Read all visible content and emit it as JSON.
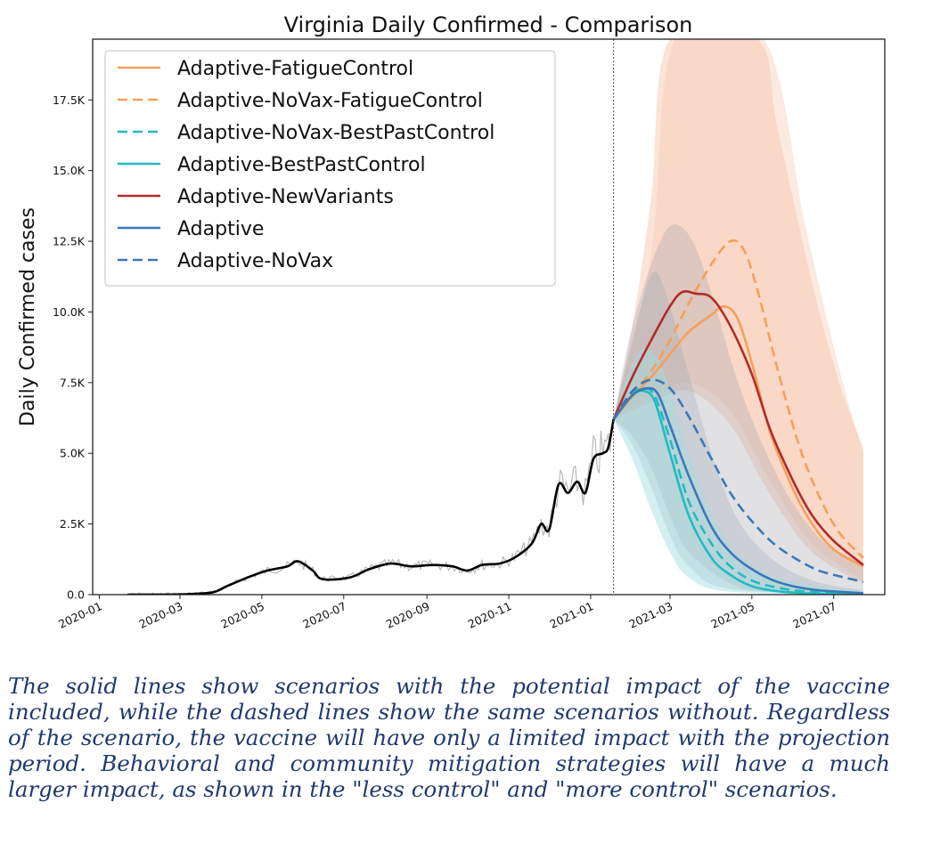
{
  "caption": "The solid lines show scenarios with the potential impact of the vaccine included, while the dashed lines show the same scenarios without. Regardless of the scenario, the vaccine will have only a limited impact with the projection period. Behavioral and community mitigation strategies will have a much larger impact, as shown in the \"less control\" and \"more control\" scenarios.",
  "chart_data": {
    "type": "line",
    "title": "Virginia Daily Confirmed - Comparison",
    "xlabel": "",
    "ylabel": "Daily Confirmed cases",
    "x_axis_type": "date",
    "xlim": [
      "2019-12-27",
      "2021-08-08"
    ],
    "ylim": [
      0,
      19650
    ],
    "x_ticks": [
      "2020-01",
      "2020-03",
      "2020-05",
      "2020-07",
      "2020-09",
      "2020-11",
      "2021-01",
      "2021-03",
      "2021-05",
      "2021-07"
    ],
    "y_ticks": [
      0,
      2500,
      5000,
      7500,
      10000,
      12500,
      15000,
      17500
    ],
    "y_tick_labels": [
      "0.0",
      "2.5K",
      "5.0K",
      "7.5K",
      "10.0K",
      "12.5K",
      "15.0K",
      "17.5K"
    ],
    "projection_start": "2021-01-18",
    "grid": false,
    "legend_position": "top-left",
    "observed": {
      "color": "#000000",
      "points": [
        [
          "2020-01-22",
          0
        ],
        [
          "2020-03-01",
          10
        ],
        [
          "2020-03-25",
          80
        ],
        [
          "2020-04-05",
          300
        ],
        [
          "2020-04-20",
          600
        ],
        [
          "2020-05-05",
          850
        ],
        [
          "2020-05-20",
          1000
        ],
        [
          "2020-05-28",
          1180
        ],
        [
          "2020-06-08",
          850
        ],
        [
          "2020-06-15",
          550
        ],
        [
          "2020-07-05",
          600
        ],
        [
          "2020-07-20",
          900
        ],
        [
          "2020-08-05",
          1100
        ],
        [
          "2020-08-20",
          1000
        ],
        [
          "2020-09-05",
          1050
        ],
        [
          "2020-09-20",
          1000
        ],
        [
          "2020-10-01",
          850
        ],
        [
          "2020-10-12",
          1050
        ],
        [
          "2020-10-25",
          1100
        ],
        [
          "2020-11-05",
          1300
        ],
        [
          "2020-11-18",
          1800
        ],
        [
          "2020-11-25",
          2500
        ],
        [
          "2020-12-01",
          2300
        ],
        [
          "2020-12-08",
          3900
        ],
        [
          "2020-12-15",
          3600
        ],
        [
          "2020-12-22",
          4000
        ],
        [
          "2020-12-28",
          3600
        ],
        [
          "2021-01-03",
          4800
        ],
        [
          "2021-01-10",
          5000
        ],
        [
          "2021-01-14",
          5200
        ],
        [
          "2021-01-18",
          6200
        ]
      ]
    },
    "series": [
      {
        "name": "Adaptive-FatigueControl",
        "color": "#f5a05a",
        "dash": "solid",
        "points": [
          [
            "2021-01-18",
            6200
          ],
          [
            "2021-02-01",
            7000
          ],
          [
            "2021-02-15",
            7700
          ],
          [
            "2021-03-01",
            8500
          ],
          [
            "2021-03-15",
            9300
          ],
          [
            "2021-04-01",
            9900
          ],
          [
            "2021-04-10",
            10200
          ],
          [
            "2021-04-20",
            9800
          ],
          [
            "2021-05-01",
            8200
          ],
          [
            "2021-05-15",
            5700
          ],
          [
            "2021-06-01",
            3700
          ],
          [
            "2021-06-15",
            2500
          ],
          [
            "2021-07-01",
            1600
          ],
          [
            "2021-07-23",
            1000
          ]
        ]
      },
      {
        "name": "Adaptive-NoVax-FatigueControl",
        "color": "#f5a05a",
        "dash": "dashed",
        "points": [
          [
            "2021-01-18",
            6200
          ],
          [
            "2021-02-01",
            7100
          ],
          [
            "2021-02-15",
            7900
          ],
          [
            "2021-03-01",
            9000
          ],
          [
            "2021-03-15",
            10300
          ],
          [
            "2021-04-01",
            11700
          ],
          [
            "2021-04-15",
            12500
          ],
          [
            "2021-04-25",
            12200
          ],
          [
            "2021-05-05",
            10800
          ],
          [
            "2021-05-20",
            8000
          ],
          [
            "2021-06-05",
            5300
          ],
          [
            "2021-06-20",
            3500
          ],
          [
            "2021-07-05",
            2200
          ],
          [
            "2021-07-23",
            1300
          ]
        ]
      },
      {
        "name": "Adaptive-NoVax-BestPastControl",
        "color": "#1fbcc2",
        "dash": "dashed",
        "points": [
          [
            "2021-01-18",
            6200
          ],
          [
            "2021-02-01",
            7100
          ],
          [
            "2021-02-10",
            7300
          ],
          [
            "2021-02-18",
            7000
          ],
          [
            "2021-03-01",
            5500
          ],
          [
            "2021-03-15",
            3300
          ],
          [
            "2021-04-01",
            1800
          ],
          [
            "2021-04-15",
            1000
          ],
          [
            "2021-05-01",
            500
          ],
          [
            "2021-05-20",
            250
          ],
          [
            "2021-06-15",
            90
          ],
          [
            "2021-07-23",
            30
          ]
        ]
      },
      {
        "name": "Adaptive-BestPastControl",
        "color": "#1fbcc2",
        "dash": "solid",
        "points": [
          [
            "2021-01-18",
            6200
          ],
          [
            "2021-02-01",
            7050
          ],
          [
            "2021-02-10",
            7200
          ],
          [
            "2021-02-18",
            6800
          ],
          [
            "2021-03-01",
            5000
          ],
          [
            "2021-03-15",
            2800
          ],
          [
            "2021-04-01",
            1300
          ],
          [
            "2021-04-15",
            700
          ],
          [
            "2021-05-01",
            300
          ],
          [
            "2021-05-20",
            120
          ],
          [
            "2021-06-15",
            40
          ],
          [
            "2021-07-23",
            15
          ]
        ]
      },
      {
        "name": "Adaptive-NewVariants",
        "color": "#b22a2a",
        "dash": "solid",
        "points": [
          [
            "2021-01-18",
            6200
          ],
          [
            "2021-02-01",
            7700
          ],
          [
            "2021-02-15",
            9000
          ],
          [
            "2021-03-01",
            10200
          ],
          [
            "2021-03-10",
            10700
          ],
          [
            "2021-03-20",
            10650
          ],
          [
            "2021-04-01",
            10500
          ],
          [
            "2021-04-15",
            9500
          ],
          [
            "2021-05-01",
            7800
          ],
          [
            "2021-05-15",
            5800
          ],
          [
            "2021-06-01",
            4000
          ],
          [
            "2021-06-15",
            2800
          ],
          [
            "2021-07-01",
            1900
          ],
          [
            "2021-07-23",
            1050
          ]
        ]
      },
      {
        "name": "Adaptive",
        "color": "#3a78b8",
        "dash": "solid",
        "points": [
          [
            "2021-01-18",
            6200
          ],
          [
            "2021-02-01",
            7050
          ],
          [
            "2021-02-12",
            7300
          ],
          [
            "2021-02-20",
            7100
          ],
          [
            "2021-03-01",
            6000
          ],
          [
            "2021-03-15",
            4200
          ],
          [
            "2021-04-01",
            2400
          ],
          [
            "2021-04-15",
            1500
          ],
          [
            "2021-05-01",
            900
          ],
          [
            "2021-05-20",
            450
          ],
          [
            "2021-06-15",
            180
          ],
          [
            "2021-07-23",
            50
          ]
        ]
      },
      {
        "name": "Adaptive-NoVax",
        "color": "#3a78b8",
        "dash": "dashed",
        "points": [
          [
            "2021-01-18",
            6200
          ],
          [
            "2021-02-01",
            7200
          ],
          [
            "2021-02-15",
            7600
          ],
          [
            "2021-03-01",
            7300
          ],
          [
            "2021-03-15",
            6300
          ],
          [
            "2021-04-01",
            4800
          ],
          [
            "2021-04-15",
            3600
          ],
          [
            "2021-05-01",
            2600
          ],
          [
            "2021-05-20",
            1700
          ],
          [
            "2021-06-15",
            950
          ],
          [
            "2021-07-01",
            700
          ],
          [
            "2021-07-23",
            450
          ]
        ]
      }
    ],
    "bands": [
      {
        "color": "#f4b89a",
        "opacity": 0.4,
        "lower": [
          [
            "2021-01-18",
            6200
          ],
          [
            "2021-02-15",
            6800
          ],
          [
            "2021-03-15",
            7200
          ],
          [
            "2021-04-15",
            6000
          ],
          [
            "2021-05-15",
            3500
          ],
          [
            "2021-06-15",
            1500
          ],
          [
            "2021-07-23",
            400
          ]
        ],
        "upper": [
          [
            "2021-01-18",
            6200
          ],
          [
            "2021-02-01",
            9500
          ],
          [
            "2021-02-15",
            14000
          ],
          [
            "2021-03-01",
            19650
          ],
          [
            "2021-05-05",
            19650
          ],
          [
            "2021-05-20",
            16500
          ],
          [
            "2021-06-15",
            11000
          ],
          [
            "2021-07-05",
            7500
          ],
          [
            "2021-07-23",
            5200
          ]
        ]
      },
      {
        "color": "#f7c8ae",
        "opacity": 0.4,
        "lower": [
          [
            "2021-01-18",
            6200
          ],
          [
            "2021-02-15",
            7000
          ],
          [
            "2021-03-15",
            7500
          ],
          [
            "2021-04-15",
            6500
          ],
          [
            "2021-05-15",
            4000
          ],
          [
            "2021-06-15",
            1800
          ],
          [
            "2021-07-23",
            500
          ]
        ],
        "upper": [
          [
            "2021-01-18",
            6200
          ],
          [
            "2021-02-15",
            12000
          ],
          [
            "2021-03-05",
            19650
          ],
          [
            "2021-05-10",
            19650
          ],
          [
            "2021-06-10",
            13000
          ],
          [
            "2021-07-05",
            8000
          ],
          [
            "2021-07-23",
            5000
          ]
        ]
      },
      {
        "color": "#a9a9b3",
        "opacity": 0.35,
        "lower": [
          [
            "2021-01-18",
            6200
          ],
          [
            "2021-02-01",
            5600
          ],
          [
            "2021-02-15",
            4500
          ],
          [
            "2021-03-01",
            2800
          ],
          [
            "2021-03-15",
            1500
          ],
          [
            "2021-04-15",
            400
          ],
          [
            "2021-05-15",
            100
          ],
          [
            "2021-07-23",
            0
          ]
        ],
        "upper": [
          [
            "2021-01-18",
            6200
          ],
          [
            "2021-02-01",
            9500
          ],
          [
            "2021-02-20",
            12300
          ],
          [
            "2021-03-05",
            13100
          ],
          [
            "2021-03-20",
            12300
          ],
          [
            "2021-04-05",
            10000
          ],
          [
            "2021-04-20",
            7600
          ],
          [
            "2021-05-10",
            5200
          ],
          [
            "2021-06-01",
            3200
          ],
          [
            "2021-06-25",
            1800
          ],
          [
            "2021-07-23",
            1100
          ]
        ]
      },
      {
        "color": "#9aa4b6",
        "opacity": 0.3,
        "lower": [
          [
            "2021-01-18",
            6200
          ],
          [
            "2021-02-01",
            5300
          ],
          [
            "2021-02-15",
            3800
          ],
          [
            "2021-03-01",
            2100
          ],
          [
            "2021-03-15",
            1000
          ],
          [
            "2021-04-15",
            200
          ],
          [
            "2021-07-23",
            0
          ]
        ],
        "upper": [
          [
            "2021-01-18",
            6200
          ],
          [
            "2021-02-01",
            9000
          ],
          [
            "2021-02-15",
            11300
          ],
          [
            "2021-02-25",
            10800
          ],
          [
            "2021-03-15",
            7800
          ],
          [
            "2021-04-01",
            5000
          ],
          [
            "2021-04-20",
            2700
          ],
          [
            "2021-05-15",
            1300
          ],
          [
            "2021-06-15",
            500
          ],
          [
            "2021-07-23",
            150
          ]
        ]
      },
      {
        "color": "#9fdbe0",
        "opacity": 0.45,
        "lower": [
          [
            "2021-01-18",
            6200
          ],
          [
            "2021-02-01",
            4800
          ],
          [
            "2021-02-15",
            3000
          ],
          [
            "2021-03-01",
            1500
          ],
          [
            "2021-03-15",
            600
          ],
          [
            "2021-04-15",
            100
          ],
          [
            "2021-07-23",
            0
          ]
        ],
        "upper": [
          [
            "2021-01-18",
            6200
          ],
          [
            "2021-02-01",
            8200
          ],
          [
            "2021-02-12",
            8700
          ],
          [
            "2021-02-25",
            7800
          ],
          [
            "2021-03-15",
            5000
          ],
          [
            "2021-04-01",
            2900
          ],
          [
            "2021-04-20",
            1500
          ],
          [
            "2021-05-20",
            600
          ],
          [
            "2021-07-23",
            100
          ]
        ]
      }
    ],
    "legend": [
      "Adaptive-FatigueControl",
      "Adaptive-NoVax-FatigueControl",
      "Adaptive-NoVax-BestPastControl",
      "Adaptive-BestPastControl",
      "Adaptive-NewVariants",
      "Adaptive",
      "Adaptive-NoVax"
    ]
  }
}
